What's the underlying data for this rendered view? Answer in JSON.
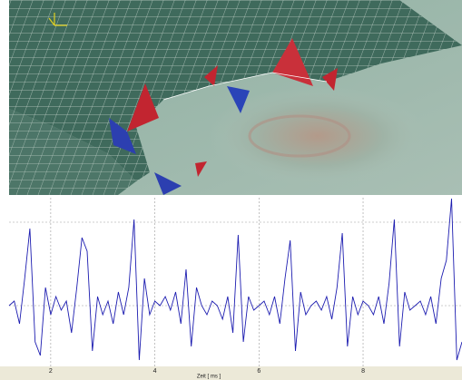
{
  "chart_data": {
    "type": "line",
    "xlabel": "Zeit [ ms ]",
    "x": [
      1.2,
      1.3,
      1.4,
      1.5,
      1.6,
      1.7,
      1.8,
      1.9,
      2.0,
      2.1,
      2.2,
      2.3,
      2.4,
      2.5,
      2.6,
      2.7,
      2.8,
      2.9,
      3.0,
      3.1,
      3.2,
      3.3,
      3.4,
      3.5,
      3.6,
      3.7,
      3.8,
      3.9,
      4.0,
      4.1,
      4.2,
      4.3,
      4.4,
      4.5,
      4.6,
      4.7,
      4.8,
      4.9,
      5.0,
      5.1,
      5.2,
      5.3,
      5.4,
      5.5,
      5.6,
      5.7,
      5.8,
      5.9,
      6.0,
      6.1,
      6.2,
      6.3,
      6.4,
      6.5,
      6.6,
      6.7,
      6.8,
      6.9,
      7.0,
      7.1,
      7.2,
      7.3,
      7.4,
      7.5,
      7.6,
      7.7,
      7.8,
      7.9,
      8.0,
      8.1,
      8.2,
      8.3,
      8.4,
      8.5,
      8.6,
      8.7,
      8.8,
      8.9,
      9.0,
      9.1,
      9.2,
      9.3,
      9.4,
      9.5,
      9.6,
      9.7,
      9.8,
      9.9
    ],
    "series": [
      {
        "color": "#1c1cb0",
        "values": [
          0.0,
          0.05,
          -0.2,
          0.3,
          0.85,
          -0.4,
          -0.55,
          0.2,
          -0.1,
          0.1,
          -0.05,
          0.05,
          -0.3,
          0.2,
          0.75,
          0.6,
          -0.5,
          0.1,
          -0.1,
          0.05,
          -0.2,
          0.15,
          -0.1,
          0.2,
          0.95,
          -0.6,
          0.3,
          -0.1,
          0.05,
          0.0,
          0.1,
          -0.05,
          0.15,
          -0.2,
          0.4,
          -0.45,
          0.2,
          0.0,
          -0.1,
          0.05,
          0.0,
          -0.15,
          0.1,
          -0.3,
          0.78,
          -0.4,
          0.1,
          -0.05,
          0.0,
          0.05,
          -0.1,
          0.1,
          -0.2,
          0.3,
          0.72,
          -0.5,
          0.15,
          -0.1,
          0.0,
          0.05,
          -0.05,
          0.1,
          -0.15,
          0.2,
          0.8,
          -0.45,
          0.1,
          -0.1,
          0.05,
          0.0,
          -0.1,
          0.1,
          -0.2,
          0.25,
          0.95,
          -0.45,
          0.15,
          -0.05,
          0.0,
          0.05,
          -0.1,
          0.1,
          -0.2,
          0.3,
          0.5,
          1.18,
          -0.6,
          -0.4
        ]
      }
    ],
    "xlim": [
      1.2,
      9.9
    ],
    "ylim": [
      -0.67,
      1.19
    ],
    "xticks": [
      2,
      4,
      6,
      8
    ],
    "grid": true
  }
}
